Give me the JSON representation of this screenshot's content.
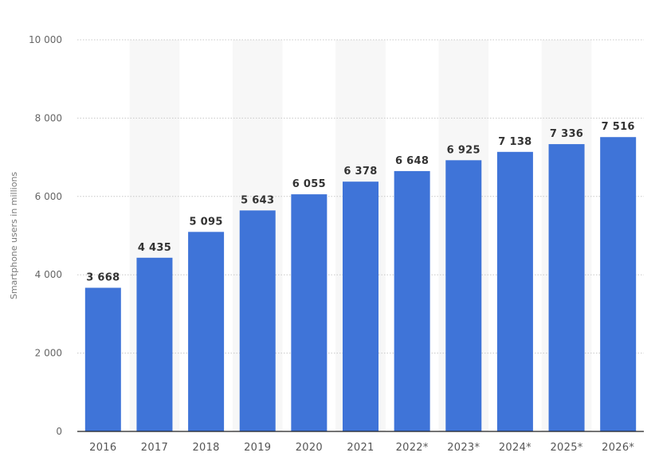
{
  "chart_data": {
    "type": "bar",
    "categories": [
      "2016",
      "2017",
      "2018",
      "2019",
      "2020",
      "2021",
      "2022*",
      "2023*",
      "2024*",
      "2025*",
      "2026*"
    ],
    "values": [
      3668,
      4435,
      5095,
      5643,
      6055,
      6378,
      6648,
      6925,
      7138,
      7336,
      7516
    ],
    "value_labels": [
      "3 668",
      "4 435",
      "5 095",
      "5 643",
      "6 055",
      "6 378",
      "6 648",
      "6 925",
      "7 138",
      "7 336",
      "7 516"
    ],
    "title": "",
    "xlabel": "",
    "ylabel": "Smartphone users in millions",
    "ylim": [
      0,
      10000
    ],
    "yticks": [
      0,
      2000,
      4000,
      6000,
      8000,
      10000
    ],
    "ytick_labels": [
      "0",
      "2 000",
      "4 000",
      "6 000",
      "8 000",
      "10 000"
    ],
    "grid": true,
    "legend": "none",
    "colors": {
      "bar": "#3f74d8",
      "band": "#f7f7f7",
      "grid": "#c8c8c8",
      "axis": "#222222"
    }
  }
}
